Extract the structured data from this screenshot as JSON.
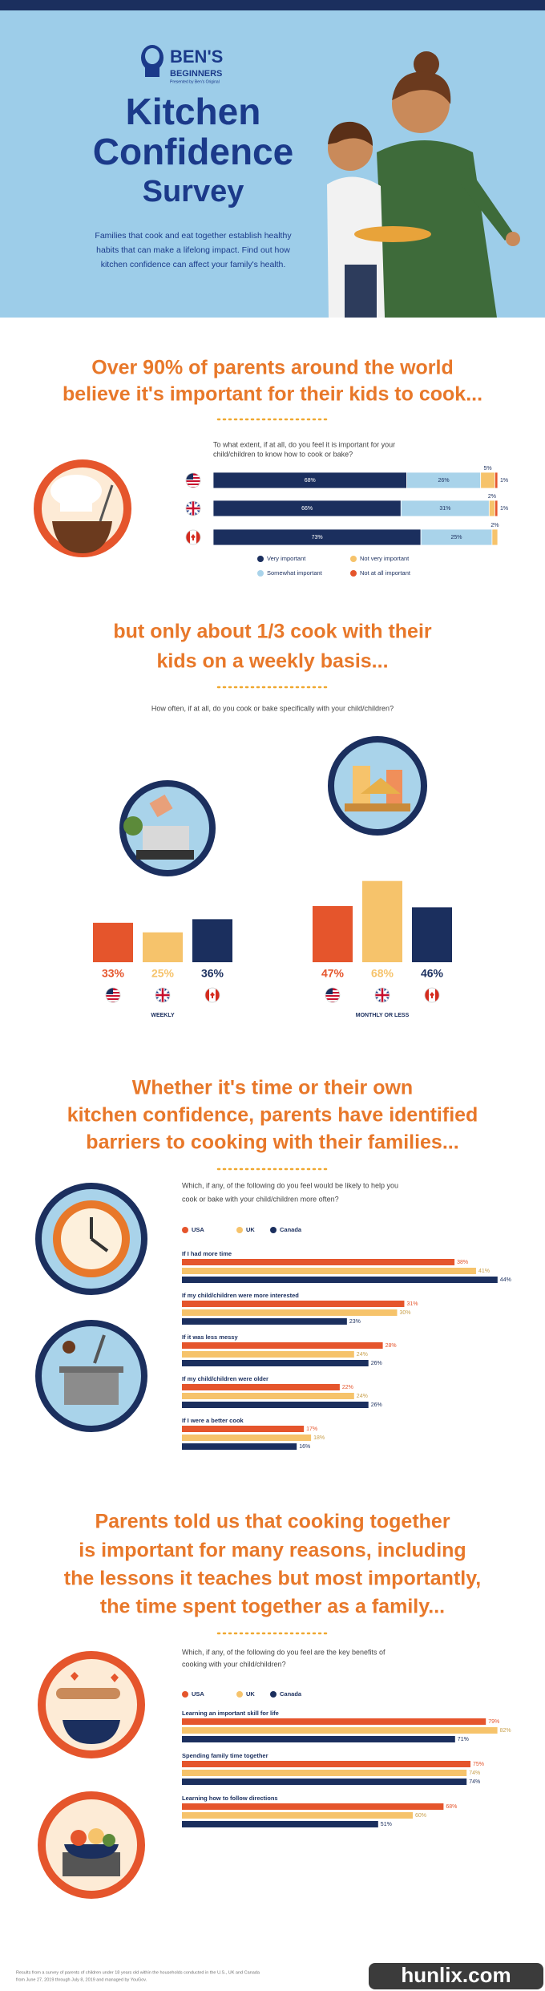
{
  "header": {
    "logo_top": "BEN'S",
    "logo_bottom": "BEGINNERS",
    "logo_tag": "Presented by Ben's Original",
    "title_lines": [
      "Kitchen",
      "Confidence",
      "Survey"
    ],
    "intro_lines": [
      "Families that cook and eat together establish healthy",
      "habits that can make a lifelong impact. Find out how",
      "kitchen confidence can affect your family's health."
    ]
  },
  "chart_data": [
    {
      "type": "stacked-bar-horizontal",
      "headline": [
        "Over 90% of parents around the world",
        "believe it's important for their kids to cook..."
      ],
      "question": [
        "To what extent, if at all, do you feel it is important for your",
        "child/children to know how to cook or bake?"
      ],
      "series": [
        {
          "name": "Very important",
          "color": "#1b2f5e",
          "values": [
            68,
            66,
            73
          ],
          "value_labels": [
            "68%",
            "66%",
            "73%"
          ]
        },
        {
          "name": "Somewhat important",
          "color": "#a9d3ea",
          "values": [
            26,
            31,
            25
          ],
          "value_labels": [
            "26%",
            "31%",
            "25%"
          ]
        },
        {
          "name": "Not very important",
          "color": "#f6c36b",
          "values": [
            5,
            2,
            2
          ],
          "value_labels": [
            "5%",
            "2%",
            "2%"
          ]
        },
        {
          "name": "Not at all important",
          "color": "#e5552c",
          "values": [
            1,
            1,
            null
          ],
          "value_labels": [
            "1%",
            "1%",
            null
          ]
        }
      ]
    },
    {
      "type": "bar",
      "headline": [
        "but only about 1/3 cook with their",
        "kids on a weekly basis..."
      ],
      "question": [
        "How often, if at all, do you cook or bake specifically with your child/children?"
      ],
      "xlabel": "WEEKLY",
      "categories": [
        null,
        null,
        null
      ],
      "values": [
        33,
        25,
        36
      ],
      "value_labels": [
        "33%",
        "25%",
        "36%"
      ],
      "colors": [
        "#e5552c",
        "#f6c36b",
        "#1b2f5e"
      ]
    },
    {
      "type": "bar",
      "xlabel": "MONTHLY OR LESS",
      "categories": [
        null,
        null,
        null
      ],
      "values": [
        47,
        68,
        46
      ],
      "value_labels": [
        "47%",
        "68%",
        "46%"
      ],
      "colors": [
        "#e5552c",
        "#f6c36b",
        "#1b2f5e"
      ]
    },
    {
      "type": "grouped-bar-horizontal",
      "headline": [
        "Whether it's time or their own",
        "kitchen confidence, parents have identified",
        "barriers to cooking with their families..."
      ],
      "question": [
        "Which, if any, of the following do you feel would be likely to help you",
        "cook or bake with your child/children more often?"
      ],
      "categories": [
        "If I had more time",
        "If my child/children were more interested",
        "If it was less messy",
        "If my child/children were older",
        "If I were a better cook"
      ],
      "series": [
        {
          "name": "USA",
          "color": "#e5552c",
          "values": [
            38,
            31,
            28,
            22,
            17
          ],
          "value_labels": [
            "38%",
            "31%",
            "28%",
            "22%",
            "17%"
          ]
        },
        {
          "name": "UK",
          "color": "#f6c36b",
          "values": [
            41,
            30,
            24,
            24,
            18
          ],
          "value_labels": [
            "41%",
            "30%",
            "24%",
            "24%",
            "18%"
          ]
        },
        {
          "name": "Canada",
          "color": "#1b2f5e",
          "values": [
            44,
            23,
            26,
            26,
            16
          ],
          "value_labels": [
            "44%",
            "23%",
            "26%",
            "26%",
            "16%"
          ]
        }
      ]
    },
    {
      "type": "grouped-bar-horizontal",
      "headline": [
        "Parents told us that cooking together",
        "is important for many reasons, including",
        "the lessons it teaches but most importantly,",
        "the time spent together as a family..."
      ],
      "question": [
        "Which, if any, of the following do you feel are the key benefits of",
        "cooking with your child/children?"
      ],
      "categories": [
        "Learning an important skill for life",
        "Spending family time together",
        "Learning how to follow directions"
      ],
      "series": [
        {
          "name": "USA",
          "color": "#e5552c",
          "values": [
            79,
            75,
            68
          ],
          "value_labels": [
            "79%",
            "75%",
            "68%"
          ]
        },
        {
          "name": "UK",
          "color": "#f6c36b",
          "values": [
            82,
            74,
            60
          ],
          "value_labels": [
            "82%",
            "74%",
            "60%"
          ]
        },
        {
          "name": "Canada",
          "color": "#1b2f5e",
          "values": [
            71,
            74,
            51
          ],
          "value_labels": [
            "71%",
            "74%",
            "51%"
          ]
        }
      ]
    }
  ],
  "footer": {
    "source_lines": [
      "Results from a survey of parents of children under 18 years old within the households conducted in the U.S., UK and Canada",
      "from June 27, 2019 through July 8, 2019 and managed by YouGov."
    ]
  },
  "watermark": "hunlix.com"
}
